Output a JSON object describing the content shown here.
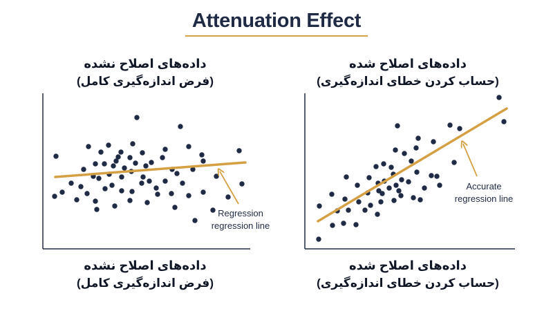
{
  "title": "Attenuation Effect",
  "captions": {
    "top_left": {
      "line1": "داده‌های اصلاح نشده",
      "line2": "(فرض اندازه‌گیری کامل)"
    },
    "top_right": {
      "line1": "داده‌های اصلاح شده",
      "line2": "(حساب کردن خطای اندازه‌گیری)"
    },
    "bottom_left": {
      "line1": "داده‌های اصلاح نشده",
      "line2": "(فرض اندازه‌گیری کامل)"
    },
    "bottom_right": {
      "line1": "داده‌های اصلاح شده",
      "line2": "(حساب کردن خطای اندازه‌گیری)"
    }
  },
  "annotations": {
    "left": {
      "line1": "Regression",
      "line2": "regression line"
    },
    "right": {
      "line1": "Accurate",
      "line2": "regression line"
    }
  },
  "colors": {
    "point": "#1f2a44",
    "line": "#d4a043",
    "axis": "#1f2a44",
    "title": "#1f2a44"
  }
}
